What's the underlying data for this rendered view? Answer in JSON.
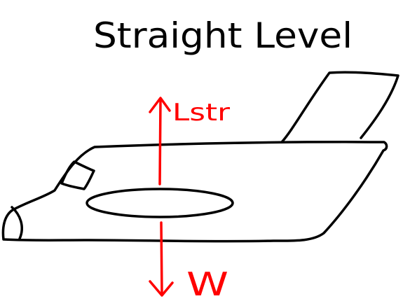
{
  "title": "Straight Level",
  "forces": {
    "lift": {
      "label": "Lstr",
      "direction": "up"
    },
    "weight": {
      "label": "W",
      "direction": "down"
    }
  },
  "colors": {
    "outline": "#000000",
    "force": "#ff0000",
    "background": "#ffffff"
  }
}
